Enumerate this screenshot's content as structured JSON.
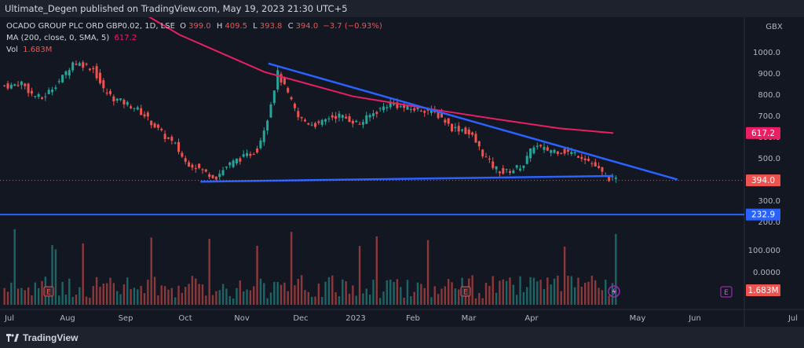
{
  "header": {
    "text": "Ultimate_Degen published on TradingView.com, May 19, 2023 21:30 UTC+5"
  },
  "legend": {
    "symbol": "OCADO GROUP PLC ORD GBP0.02, 1D, LSE",
    "ohlc": {
      "o_label": "O",
      "o": "399.0",
      "h_label": "H",
      "h": "409.5",
      "l_label": "L",
      "l": "393.8",
      "c_label": "C",
      "c": "394.0",
      "change": "−3.7 (−0.93%)"
    },
    "ma_label": "MA (200, close, 0, SMA, 5)",
    "ma_value": "617.2",
    "vol_label": "Vol",
    "vol_value": "1.683M"
  },
  "currency": "GBX",
  "footer": {
    "brand": "TradingView"
  },
  "colors": {
    "bg": "#131722",
    "up": "#26a69a",
    "down": "#ef5350",
    "ma": "#e91e63",
    "trendline": "#2962ff"
  },
  "chart_data": {
    "type": "candlestick",
    "symbol": "OCADO GROUP PLC ORD GBP0.02",
    "interval": "1D",
    "exchange": "LSE",
    "y_ticks": [
      "1000.0",
      "900.0",
      "800.0",
      "700.0",
      "600.0",
      "500.0",
      "400.0",
      "300.0",
      "200.0"
    ],
    "y_range": [
      190,
      1065
    ],
    "volume_ticks": [
      "100.000",
      "0.0000"
    ],
    "x_labels": [
      "Jul",
      "Aug",
      "Sep",
      "Oct",
      "Nov",
      "Dec",
      "2023",
      "Feb",
      "Mar",
      "Apr",
      "May",
      "Jun",
      "Jul"
    ],
    "price_labels": [
      {
        "text": "617.2",
        "value": 617.2,
        "color": "#e91e63"
      },
      {
        "text": "394.0",
        "value": 394.0,
        "color": "#ef5350"
      },
      {
        "text": "232.9",
        "value": 232.9,
        "color": "#2962ff"
      }
    ],
    "volume_label": "1.683M",
    "closes_weekly": [
      840,
      855,
      800,
      780,
      830,
      880,
      950,
      940,
      920,
      820,
      780,
      760,
      740,
      700,
      650,
      600,
      560,
      480,
      460,
      430,
      410,
      460,
      490,
      510,
      540,
      690,
      900,
      800,
      690,
      665,
      655,
      690,
      700,
      680,
      660,
      700,
      730,
      760,
      740,
      730,
      730,
      720,
      690,
      640,
      635,
      600,
      520,
      460,
      430,
      445,
      470,
      560,
      540,
      535,
      530,
      520,
      500,
      460,
      410,
      394
    ],
    "ma200": [
      {
        "date": "2022-08-20",
        "value": 1300
      },
      {
        "date": "2022-10-01",
        "value": 1080
      },
      {
        "date": "2022-11-15",
        "value": 905
      },
      {
        "date": "2023-01-01",
        "value": 790
      },
      {
        "date": "2023-02-15",
        "value": 725
      },
      {
        "date": "2023-03-20",
        "value": 680
      },
      {
        "date": "2023-04-20",
        "value": 640
      },
      {
        "date": "2023-05-19",
        "value": 617.2
      }
    ],
    "trendlines": [
      {
        "name": "",
        "from": {
          "date": "2022-11-17",
          "value": 945
        },
        "to": {
          "date": "2023-06-22",
          "value": 398
        }
      },
      {
        "name": "",
        "from": {
          "date": "2022-10-12",
          "value": 388
        },
        "to": {
          "date": "2023-05-19",
          "value": 415
        }
      },
      {
        "name": "",
        "value": 232.9
      }
    ]
  }
}
